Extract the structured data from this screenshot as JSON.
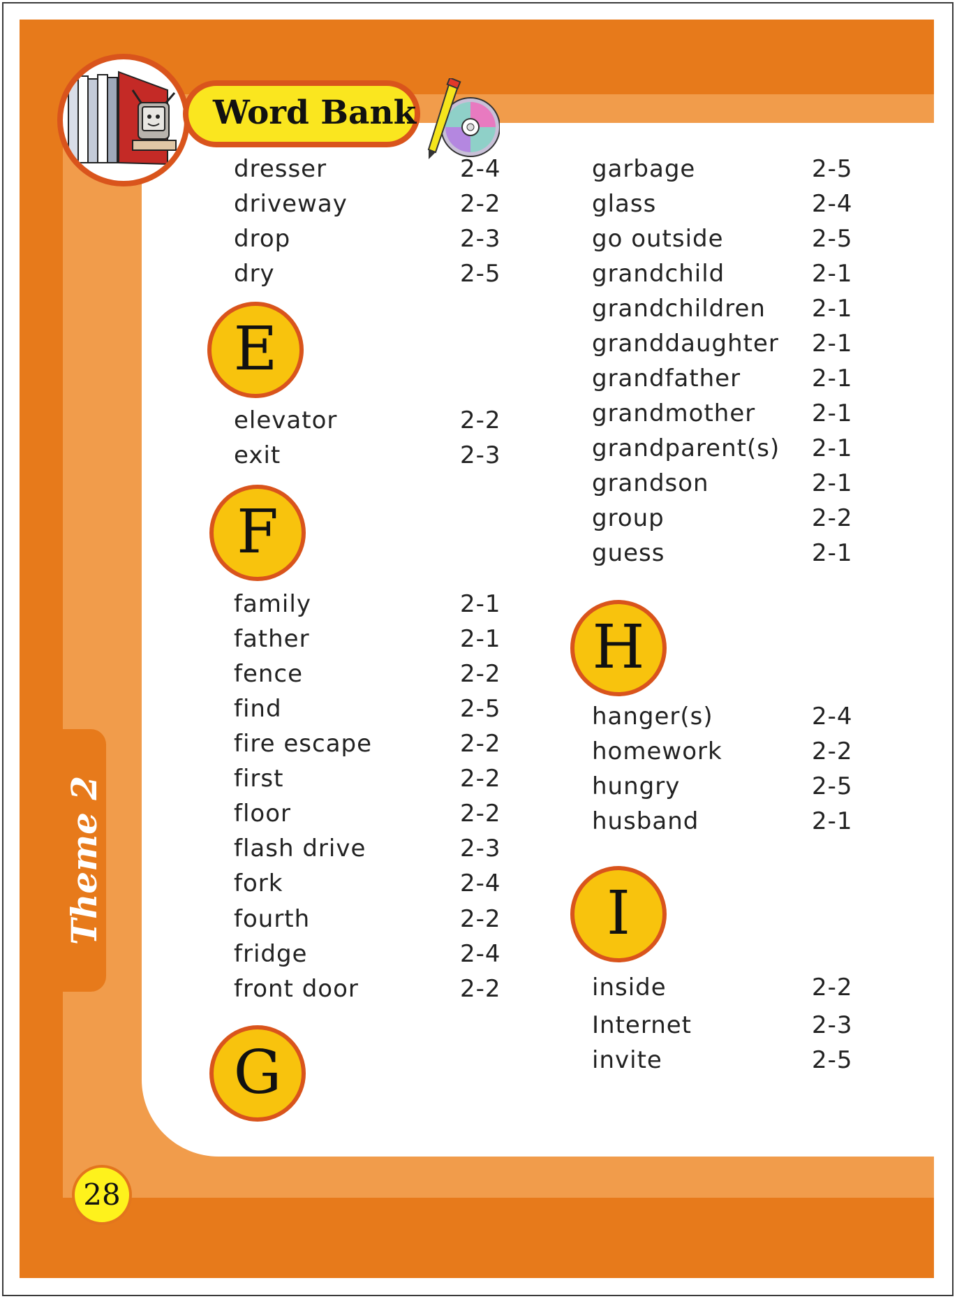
{
  "header": {
    "title": "Word Bank"
  },
  "sidebar": {
    "theme_label": "Theme 2"
  },
  "page_number": "28",
  "icons": {
    "logo": "books-computer-icon",
    "decoration": "pen-cd-icon"
  },
  "colors": {
    "frame_dark": "#e77a1b",
    "frame_light": "#f19c4b",
    "letter_fill": "#f8c30d",
    "letter_border": "#d9541c",
    "banner_fill": "#fae61f"
  },
  "left_column": {
    "d_entries": [
      {
        "word": "dresser",
        "ref": "2-4"
      },
      {
        "word": "driveway",
        "ref": "2-2"
      },
      {
        "word": "drop",
        "ref": "2-3"
      },
      {
        "word": "dry",
        "ref": "2-5"
      }
    ],
    "e_letter": "E",
    "e_entries": [
      {
        "word": "elevator",
        "ref": "2-2"
      },
      {
        "word": "exit",
        "ref": "2-3"
      }
    ],
    "f_letter": "F",
    "f_entries": [
      {
        "word": "family",
        "ref": "2-1"
      },
      {
        "word": "father",
        "ref": "2-1"
      },
      {
        "word": "fence",
        "ref": "2-2"
      },
      {
        "word": "find",
        "ref": "2-5"
      },
      {
        "word": "fire escape",
        "ref": "2-2"
      },
      {
        "word": "first",
        "ref": "2-2"
      },
      {
        "word": "floor",
        "ref": "2-2"
      },
      {
        "word": "flash drive",
        "ref": "2-3"
      },
      {
        "word": "fork",
        "ref": "2-4"
      },
      {
        "word": "fourth",
        "ref": "2-2"
      },
      {
        "word": "fridge",
        "ref": "2-4"
      },
      {
        "word": "front door",
        "ref": "2-2"
      }
    ],
    "g_letter": "G"
  },
  "right_column": {
    "g_entries": [
      {
        "word": "garbage",
        "ref": "2-5"
      },
      {
        "word": "glass",
        "ref": "2-4"
      },
      {
        "word": "go outside",
        "ref": "2-5"
      },
      {
        "word": "grandchild",
        "ref": "2-1"
      },
      {
        "word": "grandchildren",
        "ref": "2-1"
      },
      {
        "word": "granddaughter",
        "ref": "2-1"
      },
      {
        "word": "grandfather",
        "ref": "2-1"
      },
      {
        "word": "grandmother",
        "ref": "2-1"
      },
      {
        "word": "grandparent(s)",
        "ref": "2-1"
      },
      {
        "word": "grandson",
        "ref": "2-1"
      },
      {
        "word": "group",
        "ref": "2-2"
      },
      {
        "word": "guess",
        "ref": "2-1"
      }
    ],
    "h_letter": "H",
    "h_entries": [
      {
        "word": "hanger(s)",
        "ref": "2-4"
      },
      {
        "word": "homework",
        "ref": "2-2"
      },
      {
        "word": "hungry",
        "ref": "2-5"
      },
      {
        "word": "husband",
        "ref": "2-1"
      }
    ],
    "i_letter": "I",
    "i_entries": [
      {
        "word": "inside",
        "ref": "2-2"
      },
      {
        "word": "Internet",
        "ref": "2-3"
      },
      {
        "word": "invite",
        "ref": "2-5"
      }
    ]
  }
}
